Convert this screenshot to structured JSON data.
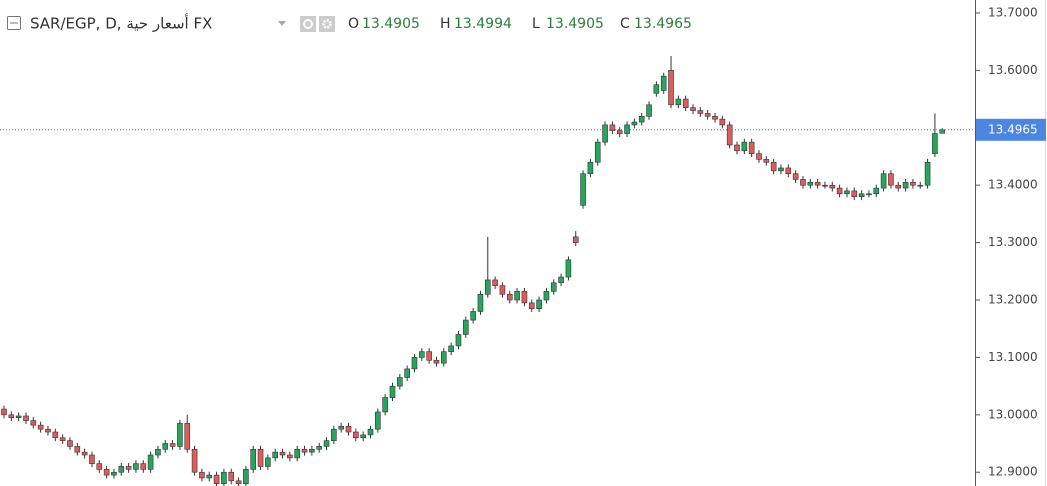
{
  "chart_data": {
    "type": "candlestick",
    "title": "SAR/EGP, D, أسعار حية FX",
    "ohlc_labels": [
      "O",
      "H",
      "L",
      "C"
    ],
    "up_color": "#26a65b",
    "down_color": "#e05b5b",
    "ylim": [
      12.876,
      13.7226
    ],
    "yticks": [
      {
        "value": 13.7,
        "label": "13.7000"
      },
      {
        "value": 13.6,
        "label": "13.6000"
      },
      {
        "value": 13.4,
        "label": "13.4000"
      },
      {
        "value": 13.3,
        "label": "13.3000"
      },
      {
        "value": 13.2,
        "label": "13.2000"
      },
      {
        "value": 13.1,
        "label": "13.1000"
      },
      {
        "value": 13.0,
        "label": "13.0000"
      },
      {
        "value": 12.9,
        "label": "12.9000"
      }
    ],
    "open": [
      13.01,
      13.0,
      12.995,
      12.998,
      12.99,
      12.982,
      12.975,
      12.97,
      12.96,
      12.955,
      12.945,
      12.935,
      12.93,
      12.915,
      12.905,
      12.895,
      12.9,
      12.91,
      12.905,
      12.915,
      12.905,
      12.93,
      12.94,
      12.95,
      12.945,
      12.985,
      12.94,
      12.9,
      12.89,
      12.895,
      12.88,
      12.9,
      12.885,
      12.88,
      12.905,
      12.94,
      12.91,
      12.925,
      12.935,
      12.93,
      12.925,
      12.94,
      12.935,
      12.94,
      12.945,
      12.955,
      12.975,
      12.98,
      12.97,
      12.96,
      12.965,
      12.975,
      13.005,
      13.03,
      13.05,
      13.065,
      13.08,
      13.1,
      13.11,
      13.095,
      13.09,
      13.11,
      13.12,
      13.14,
      13.165,
      13.18,
      13.21,
      13.235,
      13.225,
      13.21,
      13.2,
      13.215,
      13.195,
      13.185,
      13.2,
      13.215,
      13.23,
      13.24,
      13.31,
      13.365,
      13.42,
      13.44,
      13.475,
      13.505,
      13.495,
      13.49,
      13.505,
      13.51,
      13.52,
      13.56,
      13.565,
      13.6,
      13.54,
      13.55,
      13.535,
      13.53,
      13.525,
      13.52,
      13.515,
      13.505,
      13.47,
      13.46,
      13.475,
      13.455,
      13.445,
      13.44,
      13.425,
      13.43,
      13.42,
      13.41,
      13.4,
      13.405,
      13.4,
      13.4,
      13.395,
      13.385,
      13.39,
      13.38,
      13.385,
      13.385,
      13.395,
      13.42,
      13.4,
      13.395,
      13.405,
      13.4,
      13.4,
      13.455,
      13.4905
    ],
    "high": [
      13.016,
      13.006,
      13.004,
      13.004,
      12.996,
      12.988,
      12.981,
      12.976,
      12.966,
      12.961,
      12.951,
      12.941,
      12.936,
      12.921,
      12.911,
      12.906,
      12.916,
      12.916,
      12.921,
      12.921,
      12.936,
      12.946,
      12.956,
      12.956,
      12.991,
      13.0,
      12.946,
      12.906,
      12.901,
      12.901,
      12.906,
      12.906,
      12.891,
      12.911,
      12.946,
      12.946,
      12.931,
      12.941,
      12.941,
      12.936,
      12.946,
      12.946,
      12.946,
      12.951,
      12.961,
      12.981,
      12.986,
      12.986,
      12.976,
      12.971,
      12.981,
      13.011,
      13.036,
      13.056,
      13.071,
      13.086,
      13.106,
      13.116,
      13.116,
      13.101,
      13.116,
      13.126,
      13.146,
      13.171,
      13.186,
      13.216,
      13.31,
      13.241,
      13.231,
      13.216,
      13.221,
      13.221,
      13.201,
      13.206,
      13.221,
      13.236,
      13.246,
      13.276,
      13.32,
      13.426,
      13.446,
      13.481,
      13.511,
      13.511,
      13.501,
      13.511,
      13.516,
      13.526,
      13.546,
      13.581,
      13.596,
      13.625,
      13.556,
      13.556,
      13.541,
      13.536,
      13.531,
      13.526,
      13.521,
      13.511,
      13.476,
      13.481,
      13.481,
      13.461,
      13.451,
      13.446,
      13.436,
      13.436,
      13.426,
      13.416,
      13.411,
      13.411,
      13.406,
      13.406,
      13.401,
      13.396,
      13.396,
      13.391,
      13.391,
      13.401,
      13.426,
      13.426,
      13.406,
      13.411,
      13.411,
      13.406,
      13.446,
      13.525,
      13.4994
    ],
    "low": [
      12.994,
      12.989,
      12.989,
      12.984,
      12.976,
      12.969,
      12.964,
      12.954,
      12.949,
      12.939,
      12.929,
      12.924,
      12.909,
      12.899,
      12.889,
      12.889,
      12.894,
      12.899,
      12.899,
      12.899,
      12.899,
      12.924,
      12.934,
      12.939,
      12.939,
      12.934,
      12.894,
      12.884,
      12.884,
      12.874,
      12.874,
      12.879,
      12.874,
      12.874,
      12.899,
      12.904,
      12.904,
      12.919,
      12.924,
      12.919,
      12.919,
      12.929,
      12.929,
      12.934,
      12.939,
      12.949,
      12.969,
      12.964,
      12.954,
      12.954,
      12.959,
      12.969,
      12.999,
      13.024,
      13.044,
      13.059,
      13.074,
      13.094,
      13.089,
      13.084,
      13.084,
      13.104,
      13.114,
      13.134,
      13.159,
      13.174,
      13.204,
      13.219,
      13.204,
      13.194,
      13.194,
      13.189,
      13.179,
      13.179,
      13.194,
      13.209,
      13.224,
      13.234,
      13.294,
      13.359,
      13.414,
      13.434,
      13.469,
      13.489,
      13.484,
      13.484,
      13.499,
      13.504,
      13.514,
      13.554,
      13.559,
      13.534,
      13.534,
      13.529,
      13.524,
      13.519,
      13.514,
      13.509,
      13.499,
      13.464,
      13.454,
      13.454,
      13.449,
      13.439,
      13.434,
      13.419,
      13.419,
      13.414,
      13.404,
      13.394,
      13.394,
      13.394,
      13.394,
      13.389,
      13.379,
      13.379,
      13.374,
      13.374,
      13.379,
      13.379,
      13.389,
      13.394,
      13.389,
      13.389,
      13.394,
      13.394,
      13.394,
      13.449,
      13.4905
    ],
    "close": [
      13.0,
      12.995,
      12.998,
      12.99,
      12.982,
      12.975,
      12.97,
      12.96,
      12.955,
      12.945,
      12.935,
      12.93,
      12.915,
      12.905,
      12.895,
      12.9,
      12.91,
      12.905,
      12.915,
      12.905,
      12.93,
      12.94,
      12.95,
      12.945,
      12.985,
      12.94,
      12.9,
      12.89,
      12.895,
      12.88,
      12.9,
      12.885,
      12.88,
      12.905,
      12.94,
      12.91,
      12.925,
      12.935,
      12.93,
      12.925,
      12.94,
      12.935,
      12.94,
      12.945,
      12.955,
      12.975,
      12.98,
      12.97,
      12.96,
      12.965,
      12.975,
      13.005,
      13.03,
      13.05,
      13.065,
      13.08,
      13.1,
      13.11,
      13.095,
      13.09,
      13.11,
      13.12,
      13.14,
      13.165,
      13.18,
      13.21,
      13.235,
      13.225,
      13.21,
      13.2,
      13.215,
      13.195,
      13.185,
      13.2,
      13.215,
      13.23,
      13.24,
      13.27,
      13.3,
      13.42,
      13.44,
      13.475,
      13.505,
      13.495,
      13.49,
      13.505,
      13.51,
      13.52,
      13.54,
      13.575,
      13.59,
      13.54,
      13.55,
      13.535,
      13.53,
      13.525,
      13.52,
      13.515,
      13.505,
      13.47,
      13.46,
      13.475,
      13.455,
      13.445,
      13.44,
      13.425,
      13.43,
      13.42,
      13.41,
      13.4,
      13.405,
      13.4,
      13.4,
      13.395,
      13.385,
      13.39,
      13.38,
      13.385,
      13.385,
      13.395,
      13.42,
      13.4,
      13.395,
      13.405,
      13.4,
      13.4,
      13.44,
      13.49,
      13.4965
    ]
  }
}
